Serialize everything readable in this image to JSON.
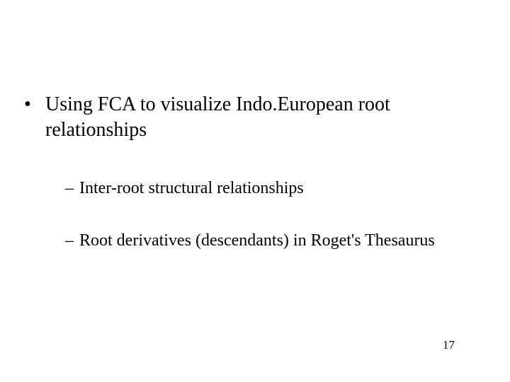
{
  "slide": {
    "main_bullet": "Using FCA to visualize Indo.European root relationships",
    "sub_bullets": [
      "Inter-root structural relationships",
      "Root derivatives (descendants) in Roget's Thesaurus"
    ],
    "page_number": "17"
  },
  "style": {
    "background_color": "#ffffff",
    "text_color": "#000000",
    "font_family": "Times New Roman",
    "main_fontsize": 28,
    "sub_fontsize": 24,
    "pagenum_fontsize": 17
  }
}
